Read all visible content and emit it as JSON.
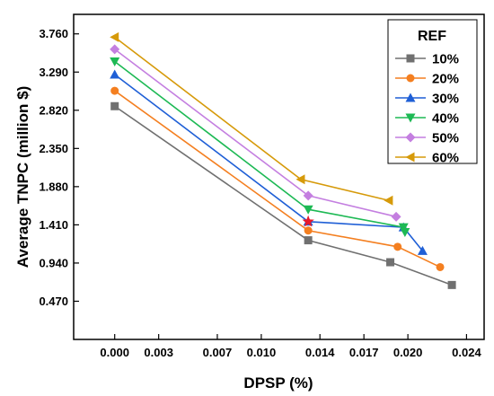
{
  "chart_data": {
    "type": "line",
    "xlabel": "DPSP (%)",
    "ylabel": "Average TNPC (million $)",
    "xlim": [
      -0.0028,
      0.0252
    ],
    "ylim": [
      0.0,
      4.0
    ],
    "x_ticks": [
      0.0,
      0.003,
      0.007,
      0.01,
      0.014,
      0.017,
      0.02,
      0.024
    ],
    "x_tick_labels": [
      "0.000",
      "0.003",
      "0.007",
      "0.010",
      "0.014",
      "0.017",
      "0.020",
      "0.024"
    ],
    "y_ticks": [
      0.47,
      0.94,
      1.41,
      1.88,
      2.35,
      2.82,
      3.29,
      3.76
    ],
    "y_tick_labels": [
      "0.470",
      "0.940",
      "1.410",
      "1.880",
      "2.350",
      "2.820",
      "3.290",
      "3.760"
    ],
    "grid": false,
    "legend": {
      "title": "REF",
      "placement": "top-right"
    },
    "series": [
      {
        "name": "10%",
        "color": "#707070",
        "marker": "square",
        "x": [
          0.0,
          0.0132,
          0.0188,
          0.023
        ],
        "y": [
          2.87,
          1.22,
          0.95,
          0.67
        ]
      },
      {
        "name": "20%",
        "color": "#f47f20",
        "marker": "circle",
        "x": [
          0.0,
          0.0132,
          0.0193,
          0.0222
        ],
        "y": [
          3.06,
          1.34,
          1.14,
          0.89
        ]
      },
      {
        "name": "30%",
        "color": "#1f5fd6",
        "marker": "triangle-up",
        "x": [
          0.0,
          0.0132,
          0.0197,
          0.021
        ],
        "y": [
          3.26,
          1.45,
          1.38,
          1.09
        ]
      },
      {
        "name": "40%",
        "color": "#1db954",
        "marker": "triangle-down",
        "x": [
          0.0,
          0.0132,
          0.0197,
          0.0198
        ],
        "y": [
          3.42,
          1.6,
          1.38,
          1.32
        ]
      },
      {
        "name": "50%",
        "color": "#c47fe0",
        "marker": "diamond",
        "x": [
          0.0,
          0.0132,
          0.0192
        ],
        "y": [
          3.57,
          1.77,
          1.51
        ]
      },
      {
        "name": "60%",
        "color": "#d69a0a",
        "marker": "triangle-left",
        "x": [
          0.0,
          0.0127,
          0.0187
        ],
        "y": [
          3.72,
          1.97,
          1.71
        ]
      }
    ],
    "highlight_point": {
      "x": 0.0132,
      "y": 1.45,
      "marker": "star",
      "color": "#e8192c"
    }
  }
}
